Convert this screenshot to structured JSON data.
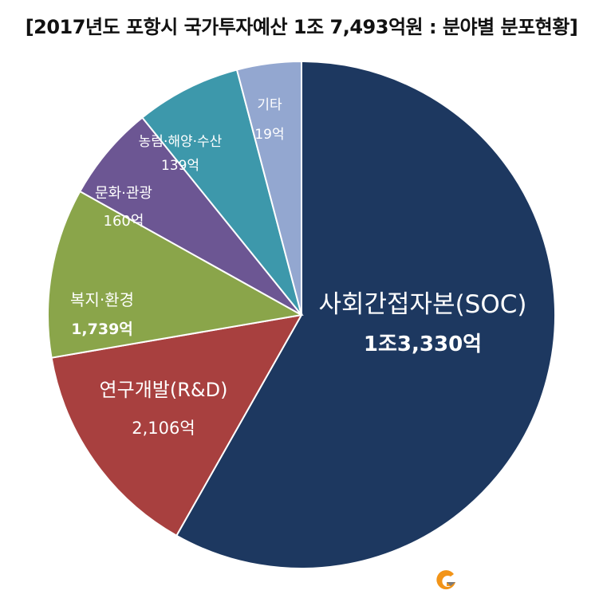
{
  "title": "[2017년도 포항시 국가투자예산 1조 7,493억원 : 분야별 분포현황]",
  "colors": {
    "soc": "#1d3860",
    "rnd": "#a8403f",
    "welfare": "#8aa54a",
    "culture": "#6c5693",
    "agri": "#3d98ab",
    "etc": "#93a7d0",
    "logo_orange": "#f29418",
    "logo_gray": "#7a7a7a"
  },
  "chart_data": {
    "type": "pie",
    "title": "[2017년도 포항시 국가투자예산 1조 7,493억원 : 분야별 분포현황]",
    "unit": "억",
    "slices": [
      {
        "label": "사회간접자본(SOC)",
        "value": 13330,
        "value_label": "1조3,330억",
        "color": "#1d3860"
      },
      {
        "label": "연구개발(R&D)",
        "value": 2106,
        "value_label": "2,106억",
        "color": "#a8403f"
      },
      {
        "label": "복지·환경",
        "value": 1739,
        "value_label": "1,739억",
        "color": "#8aa54a"
      },
      {
        "label": "문화·관광",
        "value": 160,
        "value_label": "160억",
        "color": "#6c5693"
      },
      {
        "label": "농림·해양·수산",
        "value": 139,
        "value_label": "139억",
        "color": "#3d98ab"
      },
      {
        "label": "기타",
        "value": 19,
        "value_label": "19억",
        "color": "#93a7d0"
      }
    ],
    "start": "12 o'clock",
    "direction": "clockwise",
    "legend": "none"
  }
}
